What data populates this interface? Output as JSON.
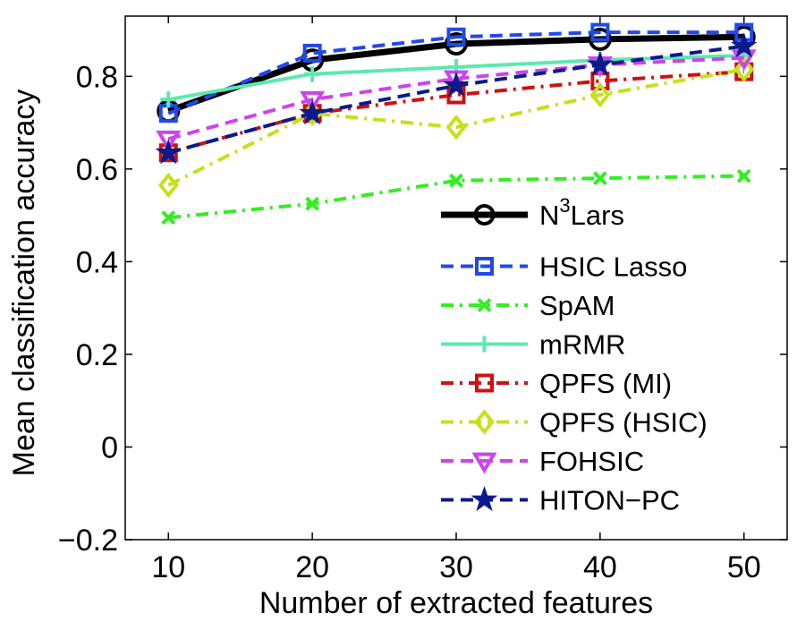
{
  "chart_data": {
    "type": "line",
    "title": "",
    "xlabel": "Number of extracted features",
    "ylabel": "Mean classification accuracy",
    "x": [
      10,
      20,
      30,
      40,
      50
    ],
    "xlim": [
      7,
      53
    ],
    "ylim": [
      -0.2,
      0.93
    ],
    "xticks": [
      10,
      20,
      30,
      40,
      50
    ],
    "xtick_labels": [
      "10",
      "20",
      "30",
      "40",
      "50"
    ],
    "yticks": [
      -0.2,
      0,
      0.2,
      0.4,
      0.6,
      0.8
    ],
    "ytick_labels": [
      "−0.2",
      "0",
      "0.2",
      "0.4",
      "0.6",
      "0.8"
    ],
    "grid": false,
    "legend_position": "lower-right",
    "series": [
      {
        "name": "N3Lars",
        "label_base": "N",
        "label_sup": "3",
        "label_rest": "Lars",
        "color": "#000000",
        "marker": "circle",
        "linestyle": "solid",
        "values": [
          0.725,
          0.835,
          0.87,
          0.88,
          0.885
        ]
      },
      {
        "name": "HSIC Lasso",
        "color": "#2149e8",
        "marker": "square",
        "linestyle": "dashed",
        "values": [
          0.72,
          0.85,
          0.885,
          0.895,
          0.895
        ]
      },
      {
        "name": "SpAM",
        "color": "#33ee22",
        "marker": "x",
        "linestyle": "dashdot",
        "values": [
          0.495,
          0.525,
          0.575,
          0.58,
          0.585
        ]
      },
      {
        "name": "mRMR",
        "color": "#5de8b0",
        "marker": "plus",
        "linestyle": "solid",
        "values": [
          0.75,
          0.805,
          0.82,
          0.835,
          0.845
        ]
      },
      {
        "name": "QPFS (MI)",
        "color": "#d01010",
        "marker": "square",
        "linestyle": "dashdot",
        "values": [
          0.635,
          0.72,
          0.76,
          0.79,
          0.81
        ]
      },
      {
        "name": "QPFS (HSIC)",
        "color": "#c6e01a",
        "marker": "diamond",
        "linestyle": "dashdot",
        "values": [
          0.565,
          0.72,
          0.69,
          0.76,
          0.815
        ]
      },
      {
        "name": "FOHSIC",
        "color": "#cc44ee",
        "marker": "triangle-down",
        "linestyle": "dashed",
        "values": [
          0.665,
          0.75,
          0.795,
          0.825,
          0.84
        ]
      },
      {
        "name": "HITON−PC",
        "color": "#0a1a8c",
        "marker": "star",
        "linestyle": "dashed",
        "values": [
          0.635,
          0.72,
          0.78,
          0.825,
          0.865
        ]
      }
    ]
  }
}
